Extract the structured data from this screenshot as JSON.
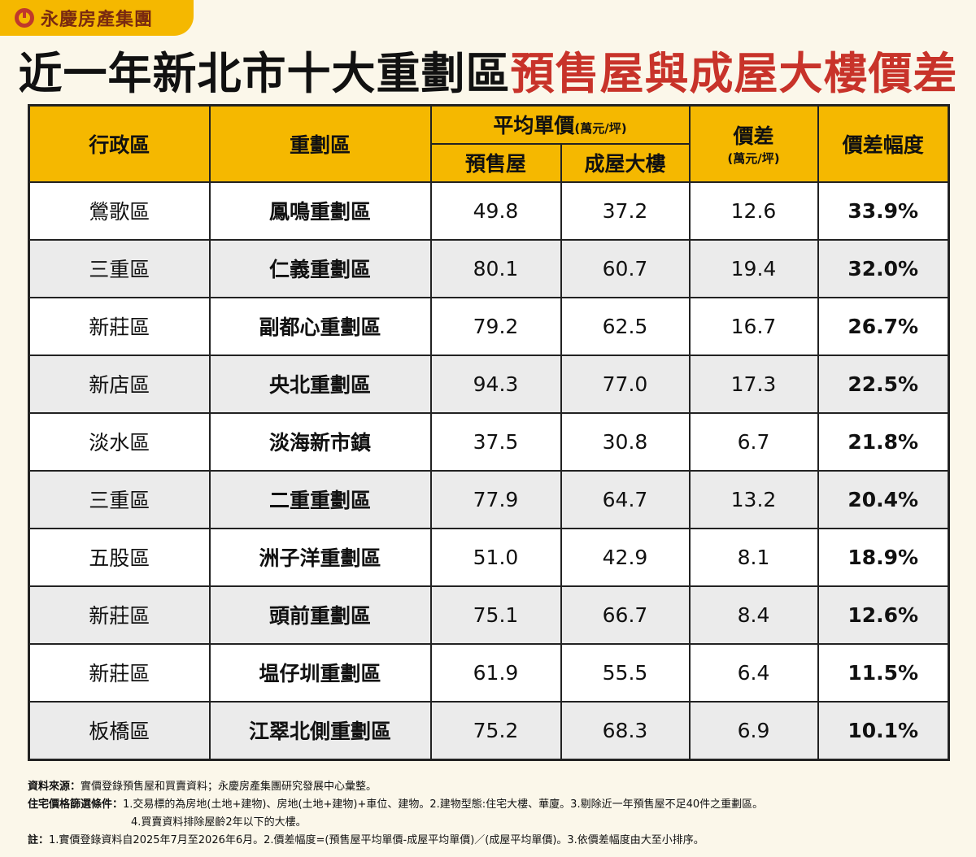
{
  "brand": {
    "name": "永慶房產集團"
  },
  "title": {
    "part1": "近一年新北市十大重劃區",
    "part2": "預售屋與成屋大樓價差"
  },
  "table": {
    "headers": {
      "district": "行政區",
      "zone": "重劃區",
      "avg_price": "平均單價",
      "avg_price_unit": "(萬元/坪)",
      "presale": "預售屋",
      "existing": "成屋大樓",
      "diff": "價差",
      "diff_unit": "(萬元/坪)",
      "diff_pct": "價差幅度"
    },
    "rows": [
      {
        "district": "鶯歌區",
        "zone": "鳳鳴重劃區",
        "presale": "49.8",
        "existing": "37.2",
        "diff": "12.6",
        "pct": "33.9%"
      },
      {
        "district": "三重區",
        "zone": "仁義重劃區",
        "presale": "80.1",
        "existing": "60.7",
        "diff": "19.4",
        "pct": "32.0%"
      },
      {
        "district": "新莊區",
        "zone": "副都心重劃區",
        "presale": "79.2",
        "existing": "62.5",
        "diff": "16.7",
        "pct": "26.7%"
      },
      {
        "district": "新店區",
        "zone": "央北重劃區",
        "presale": "94.3",
        "existing": "77.0",
        "diff": "17.3",
        "pct": "22.5%"
      },
      {
        "district": "淡水區",
        "zone": "淡海新市鎮",
        "presale": "37.5",
        "existing": "30.8",
        "diff": "6.7",
        "pct": "21.8%"
      },
      {
        "district": "三重區",
        "zone": "二重重劃區",
        "presale": "77.9",
        "existing": "64.7",
        "diff": "13.2",
        "pct": "20.4%"
      },
      {
        "district": "五股區",
        "zone": "洲子洋重劃區",
        "presale": "51.0",
        "existing": "42.9",
        "diff": "8.1",
        "pct": "18.9%"
      },
      {
        "district": "新莊區",
        "zone": "頭前重劃區",
        "presale": "75.1",
        "existing": "66.7",
        "diff": "8.4",
        "pct": "12.6%"
      },
      {
        "district": "新莊區",
        "zone": "塭仔圳重劃區",
        "presale": "61.9",
        "existing": "55.5",
        "diff": "6.4",
        "pct": "11.5%"
      },
      {
        "district": "板橋區",
        "zone": "江翠北側重劃區",
        "presale": "75.2",
        "existing": "68.3",
        "diff": "6.9",
        "pct": "10.1%"
      }
    ]
  },
  "notes": {
    "source_label": "資料來源：",
    "source_text": "實價登錄預售屋和買賣資料；永慶房產集團研究發展中心彙整。",
    "filter_label": "住宅價格篩選條件：",
    "filter_text": "1.交易標的為房地(土地+建物)、房地(土地+建物)+車位、建物。2.建物型態:住宅大樓、華廈。3.剔除近一年預售屋不足40件之重劃區。",
    "filter_text2": "4.買賣資料排除屋齡2年以下的大樓。",
    "note_label": "註：",
    "note_text": "1.實價登錄資料自2025年7月至2026年6月。2.價差幅度=(預售屋平均單價-成屋平均單價)／(成屋平均單價)。3.依價差幅度由大至小排序。"
  }
}
